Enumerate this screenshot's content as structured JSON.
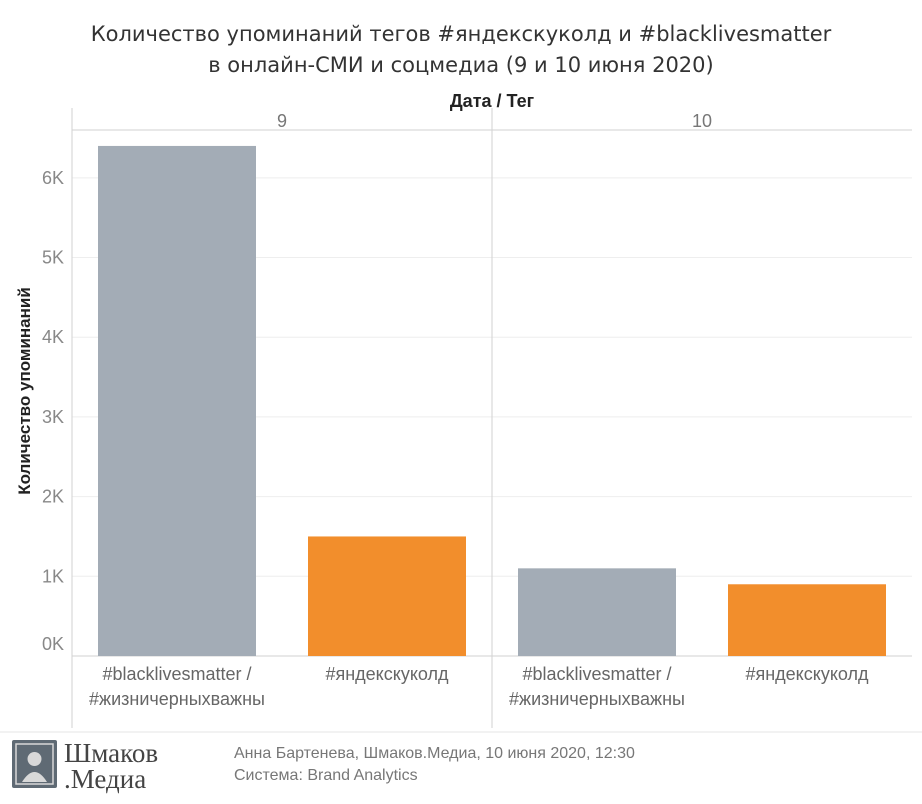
{
  "chart_data": {
    "type": "bar",
    "title": [
      "Количество упоминаний тегов #яндекскуколд и #blacklivesmatter",
      "в онлайн-СМИ и соцмедиа (9 и 10 июня 2020)"
    ],
    "column_header": "Дата  /  Тег",
    "ylabel": "Количество упоминаний",
    "ylim": [
      0,
      6600
    ],
    "yticks": [
      0,
      1000,
      2000,
      3000,
      4000,
      5000,
      6000
    ],
    "ytick_labels": [
      "0K",
      "1K",
      "2K",
      "3K",
      "4K",
      "5K",
      "6K"
    ],
    "grid": true,
    "panes": [
      {
        "label": "9",
        "bars": [
          {
            "category": [
              "#blacklivesmatter /",
              "#жизничерныхважны"
            ],
            "value": 6400,
            "color": "#a3acb6"
          },
          {
            "category": [
              "#яндекскуколд"
            ],
            "value": 1500,
            "color": "#f28e2c"
          }
        ]
      },
      {
        "label": "10",
        "bars": [
          {
            "category": [
              "#blacklivesmatter /",
              "#жизничерныхважны"
            ],
            "value": 1100,
            "color": "#a3acb6"
          },
          {
            "category": [
              "#яндекскуколд"
            ],
            "value": 900,
            "color": "#f28e2c"
          }
        ]
      }
    ]
  },
  "footer": {
    "logo_line1": "Шмаков",
    "logo_line2": ".Медиа",
    "credit": "Анна Бартенева, Шмаков.Медиа, 10 июня 2020, 12:30",
    "system": "Система: Brand Analytics"
  }
}
